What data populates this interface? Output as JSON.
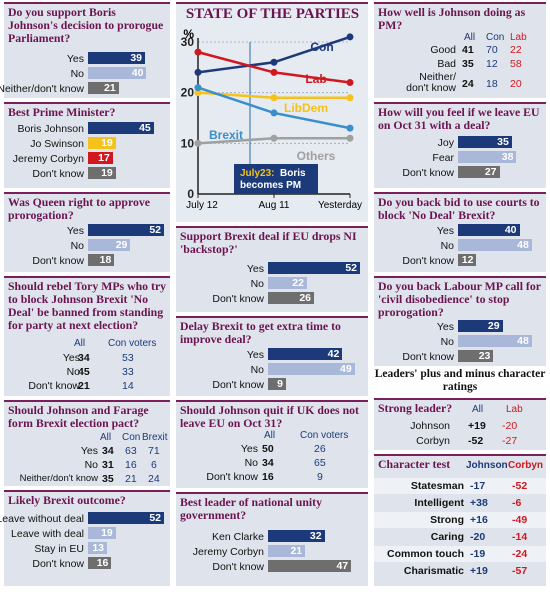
{
  "col1": {
    "q1": {
      "question": "Do you support Boris Johnson's decision to prorogue Parliament?",
      "rows": [
        {
          "label": "Yes",
          "value": 39
        },
        {
          "label": "No",
          "value": 40
        },
        {
          "label": "Neither/don't know",
          "value": 21
        }
      ]
    },
    "q2": {
      "question": "Best Prime Minister?",
      "rows": [
        {
          "label": "Boris Johnson",
          "value": 45
        },
        {
          "label": "Jo Swinson",
          "value": 19
        },
        {
          "label": "Jeremy Corbyn",
          "value": 17
        },
        {
          "label": "Don't know",
          "value": 19
        }
      ]
    },
    "q3": {
      "question": "Was Queen right to approve prorogation?",
      "rows": [
        {
          "label": "Yes",
          "value": 52
        },
        {
          "label": "No",
          "value": 29
        },
        {
          "label": "Don't know",
          "value": 18
        }
      ]
    },
    "q4": {
      "question": "Should rebel Tory MPs who try to block Johnson Brexit 'No Deal' be banned from standing for party at next election?",
      "headers": [
        "All",
        "Con voters"
      ],
      "rows": [
        {
          "label": "Yes",
          "all": 34,
          "con": 53
        },
        {
          "label": "No",
          "all": 45,
          "con": 33
        },
        {
          "label": "Don't know",
          "all": 21,
          "con": 14
        }
      ]
    },
    "q5": {
      "question": "Should Johnson and Farage form Brexit election pact?",
      "headers": [
        "All",
        "Con",
        "Brexit"
      ],
      "rows": [
        {
          "label": "Yes",
          "all": 34,
          "con": 63,
          "brexit": 71
        },
        {
          "label": "No",
          "all": 31,
          "con": 16,
          "brexit": 6
        },
        {
          "label": "Neither/don't know",
          "all": 35,
          "con": 21,
          "brexit": 24
        }
      ]
    },
    "q6": {
      "question": "Likely Brexit outcome?",
      "rows": [
        {
          "label": "Leave without deal",
          "value": 52
        },
        {
          "label": "Leave with deal",
          "value": 19
        },
        {
          "label": "Stay in EU",
          "value": 13
        },
        {
          "label": "Don't know",
          "value": 16
        }
      ]
    }
  },
  "col2": {
    "title": "STATE OF THE PARTIES",
    "chart_data": {
      "type": "line",
      "title": "STATE OF THE PARTIES",
      "x": [
        "July 12",
        "Aug 11",
        "Yesterday"
      ],
      "ylim": [
        0,
        30
      ],
      "yticks": [
        0,
        10,
        20,
        30
      ],
      "series": [
        {
          "name": "Con",
          "color": "#1c3a7a",
          "values": [
            24,
            26,
            31
          ]
        },
        {
          "name": "Lab",
          "color": "#d0181e",
          "values": [
            28,
            24,
            22
          ]
        },
        {
          "name": "LibDem",
          "color": "#f4c21a",
          "values": [
            20,
            19,
            19
          ]
        },
        {
          "name": "Brexit",
          "color": "#3a8fc9",
          "values": [
            21,
            16,
            13
          ]
        },
        {
          "name": "Others",
          "color": "#a0a0a0",
          "values": [
            10,
            11,
            11
          ]
        }
      ],
      "annotation": "July23: Boris becomes PM"
    },
    "q7": {
      "question": "Support Brexit deal if EU drops NI 'backstop?'",
      "rows": [
        {
          "label": "Yes",
          "value": 52
        },
        {
          "label": "No",
          "value": 22
        },
        {
          "label": "Don't know",
          "value": 26
        }
      ]
    },
    "q8": {
      "question": "Delay Brexit to get extra time to improve deal?",
      "rows": [
        {
          "label": "Yes",
          "value": 42
        },
        {
          "label": "No",
          "value": 49
        },
        {
          "label": "Don't know",
          "value": 9
        }
      ]
    },
    "q9": {
      "question": "Should Johnson quit if UK does not leave EU on Oct 31?",
      "headers": [
        "All",
        "Con voters"
      ],
      "rows": [
        {
          "label": "Yes",
          "all": 50,
          "con": 26
        },
        {
          "label": "No",
          "all": 34,
          "con": 65
        },
        {
          "label": "Don't know",
          "all": 16,
          "con": 9
        }
      ]
    },
    "q10": {
      "question": "Best leader of national unity government?",
      "rows": [
        {
          "label": "Ken Clarke",
          "value": 32
        },
        {
          "label": "Jeremy Corbyn",
          "value": 21
        },
        {
          "label": "Don't know",
          "value": 47
        }
      ]
    }
  },
  "col3": {
    "q11": {
      "question": "How well is Johnson doing as PM?",
      "headers": [
        "All",
        "Con",
        "Lab"
      ],
      "rows": [
        {
          "label": "Good",
          "all": 41,
          "con": 70,
          "lab": 22
        },
        {
          "label": "Bad",
          "all": 35,
          "con": 12,
          "lab": 58
        },
        {
          "label": "Neither/ don't know",
          "all": 24,
          "con": 18,
          "lab": 20
        }
      ]
    },
    "q12": {
      "question": "How will you feel if we leave EU on Oct 31 with a deal?",
      "rows": [
        {
          "label": "Joy",
          "value": 35
        },
        {
          "label": "Fear",
          "value": 38
        },
        {
          "label": "Don't know",
          "value": 27
        }
      ]
    },
    "q13": {
      "question": "Do you back bid to use courts to block 'No Deal' Brexit?",
      "rows": [
        {
          "label": "Yes",
          "value": 40
        },
        {
          "label": "No",
          "value": 48
        },
        {
          "label": "Don't know",
          "value": 12
        }
      ]
    },
    "q14": {
      "question": "Do you back Labour MP call for 'civil disobedience' to stop prorogation?",
      "rows": [
        {
          "label": "Yes",
          "value": 29
        },
        {
          "label": "No",
          "value": 48
        },
        {
          "label": "Don't know",
          "value": 23
        }
      ]
    },
    "ratings_title": "Leaders' plus and minus character ratings",
    "q15": {
      "question": "Strong leader?",
      "headers": [
        "All",
        "Lab"
      ],
      "rows": [
        {
          "label": "Johnson",
          "all": "+19",
          "lab": "-20"
        },
        {
          "label": "Corbyn",
          "all": "-52",
          "lab": "-27"
        }
      ]
    },
    "q16": {
      "question": "Character test",
      "headers": [
        "Johnson",
        "Corbyn"
      ],
      "rows": [
        {
          "label": "Statesman",
          "johnson": "-17",
          "corbyn": "-52"
        },
        {
          "label": "Intelligent",
          "johnson": "+38",
          "corbyn": "-6"
        },
        {
          "label": "Strong",
          "johnson": "+16",
          "corbyn": "-49"
        },
        {
          "label": "Caring",
          "johnson": "-20",
          "corbyn": "-14"
        },
        {
          "label": "Common touch",
          "johnson": "-19",
          "corbyn": "-24"
        },
        {
          "label": "Charismatic",
          "johnson": "+19",
          "corbyn": "-57"
        }
      ]
    }
  }
}
